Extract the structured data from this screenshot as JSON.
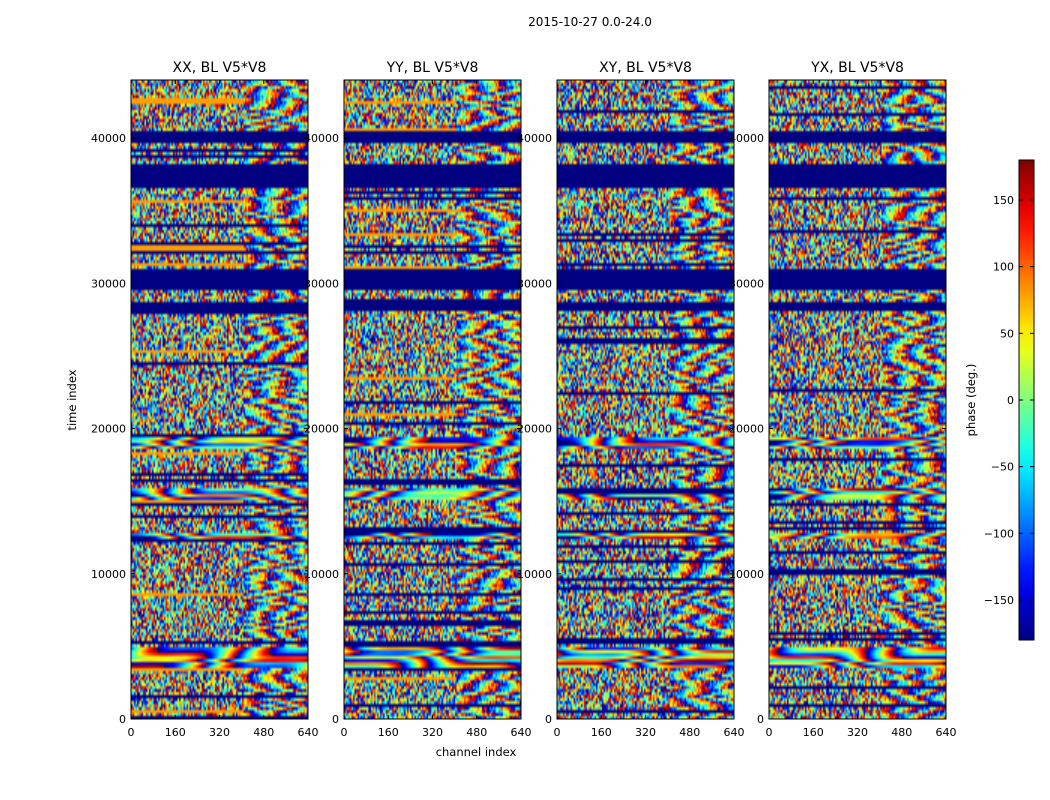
{
  "figure": {
    "suptitle": "2015-10-27 0.0-24.0"
  },
  "chart_data": {
    "type": "heatmap",
    "xlabel": "channel index",
    "ylabel": "time index",
    "xlim": [
      0,
      640
    ],
    "ylim": [
      0,
      44000
    ],
    "x_ticks": [
      0,
      160,
      320,
      480,
      640
    ],
    "y_ticks": [
      0,
      10000,
      20000,
      30000,
      40000
    ],
    "colorscale": "jet",
    "colorbar": {
      "label": "phase (deg.)",
      "range": [
        -180,
        180
      ],
      "ticks": [
        -150,
        -100,
        -50,
        0,
        50,
        100,
        150
      ],
      "tick_labels": [
        "−150",
        "−100",
        "−50",
        "0",
        "50",
        "100",
        "150"
      ]
    },
    "panels": [
      {
        "title": "XX, BL V5*V8",
        "pol": "XX"
      },
      {
        "title": "YY, BL V5*V8",
        "pol": "YY"
      },
      {
        "title": "XY, BL V5*V8",
        "pol": "XY"
      },
      {
        "title": "YX, BL V5*V8",
        "pol": "YX"
      }
    ],
    "flagged_time_bands": [
      [
        36500,
        38300
      ],
      [
        28000,
        28700
      ],
      [
        29500,
        31000
      ],
      [
        39700,
        40500
      ]
    ],
    "fringe_time_bands": [
      [
        3600,
        4900
      ],
      [
        12300,
        12800
      ],
      [
        15000,
        16000
      ],
      [
        18500,
        19400
      ]
    ]
  }
}
